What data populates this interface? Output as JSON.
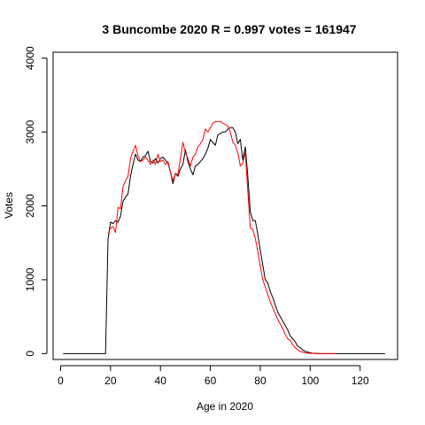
{
  "chart_data": {
    "type": "line",
    "title": "3 Buncombe 2020 R = 0.997 votes = 161947",
    "xlabel": "Age in 2020",
    "ylabel": "Votes",
    "xlim": [
      -3,
      135
    ],
    "ylim": [
      -80,
      4080
    ],
    "xticks": [
      0,
      20,
      40,
      60,
      80,
      100,
      120
    ],
    "yticks": [
      0,
      1000,
      2000,
      3000,
      4000
    ],
    "series": [
      {
        "color": "#000000",
        "x": [
          1,
          2,
          3,
          4,
          5,
          6,
          7,
          8,
          9,
          10,
          11,
          12,
          13,
          14,
          15,
          16,
          17,
          18,
          19,
          20,
          21,
          22,
          23,
          24,
          25,
          26,
          27,
          28,
          29,
          30,
          31,
          32,
          33,
          34,
          35,
          36,
          37,
          38,
          39,
          40,
          41,
          42,
          43,
          44,
          45,
          46,
          47,
          48,
          49,
          50,
          51,
          52,
          53,
          54,
          55,
          56,
          57,
          58,
          59,
          60,
          61,
          62,
          63,
          64,
          65,
          66,
          67,
          68,
          69,
          70,
          71,
          72,
          73,
          74,
          75,
          76,
          77,
          78,
          79,
          80,
          81,
          82,
          83,
          84,
          85,
          86,
          87,
          88,
          89,
          90,
          91,
          92,
          93,
          94,
          95,
          96,
          97,
          98,
          99,
          100,
          101,
          102,
          103,
          104,
          105,
          106,
          107,
          108,
          109,
          110,
          111,
          112,
          113,
          114,
          115,
          116,
          117,
          118,
          119,
          120,
          121,
          122,
          123,
          124,
          125,
          126,
          127,
          128,
          129,
          130
        ],
        "y": [
          0,
          0,
          0,
          0,
          0,
          0,
          0,
          0,
          0,
          0,
          0,
          0,
          0,
          0,
          0,
          0,
          0,
          0,
          1550,
          1780,
          1760,
          1800,
          1780,
          1860,
          2060,
          2120,
          2160,
          2400,
          2560,
          2700,
          2620,
          2600,
          2660,
          2680,
          2740,
          2600,
          2580,
          2640,
          2580,
          2640,
          2660,
          2620,
          2580,
          2460,
          2300,
          2440,
          2400,
          2500,
          2560,
          2760,
          2600,
          2500,
          2420,
          2540,
          2560,
          2600,
          2640,
          2700,
          2780,
          2900,
          2860,
          2820,
          2960,
          2980,
          3000,
          3000,
          3040,
          3060,
          3060,
          3000,
          2840,
          2900,
          2620,
          2800,
          2400,
          1920,
          1800,
          1800,
          1620,
          1400,
          1200,
          1000,
          960,
          840,
          760,
          660,
          560,
          500,
          440,
          380,
          320,
          240,
          200,
          160,
          100,
          80,
          50,
          30,
          20,
          10,
          5,
          3,
          2,
          0,
          0,
          0,
          0,
          0,
          0,
          0,
          0,
          0,
          0,
          0,
          0,
          0,
          0,
          0,
          0,
          0,
          0,
          0,
          0,
          0,
          0,
          0,
          0,
          0,
          0,
          0
        ]
      },
      {
        "color": "#ff0000",
        "x": [
          19,
          20,
          21,
          22,
          23,
          24,
          25,
          26,
          27,
          28,
          29,
          30,
          31,
          32,
          33,
          34,
          35,
          36,
          37,
          38,
          39,
          40,
          41,
          42,
          43,
          44,
          45,
          46,
          47,
          48,
          49,
          50,
          51,
          52,
          53,
          54,
          55,
          56,
          57,
          58,
          59,
          60,
          61,
          62,
          63,
          64,
          65,
          66,
          67,
          68,
          69,
          70,
          71,
          72,
          73,
          74,
          75,
          76,
          77,
          78,
          79,
          80,
          81,
          82,
          83,
          84,
          85,
          86,
          87,
          88,
          89,
          90,
          91,
          92,
          93,
          94,
          95,
          96,
          97,
          98,
          99,
          100,
          101,
          102,
          103,
          104,
          105,
          106,
          107,
          108,
          109,
          110
        ],
        "y": [
          1620,
          1700,
          1720,
          1640,
          1980,
          1960,
          2260,
          2340,
          2400,
          2640,
          2740,
          2820,
          2680,
          2600,
          2620,
          2660,
          2620,
          2560,
          2620,
          2560,
          2700,
          2600,
          2620,
          2560,
          2600,
          2460,
          2340,
          2440,
          2420,
          2640,
          2860,
          2720,
          2640,
          2540,
          2660,
          2700,
          2800,
          2840,
          2900,
          3040,
          3000,
          3060,
          3120,
          3140,
          3140,
          3140,
          3120,
          3100,
          3080,
          3000,
          2860,
          2820,
          2720,
          2540,
          2580,
          2720,
          2200,
          1700,
          1680,
          1560,
          1380,
          1180,
          1000,
          900,
          800,
          700,
          620,
          540,
          460,
          400,
          340,
          260,
          200,
          180,
          120,
          80,
          50,
          30,
          20,
          10,
          5,
          3,
          2,
          0,
          0,
          0,
          0,
          0,
          0,
          0,
          0,
          0
        ]
      }
    ]
  }
}
